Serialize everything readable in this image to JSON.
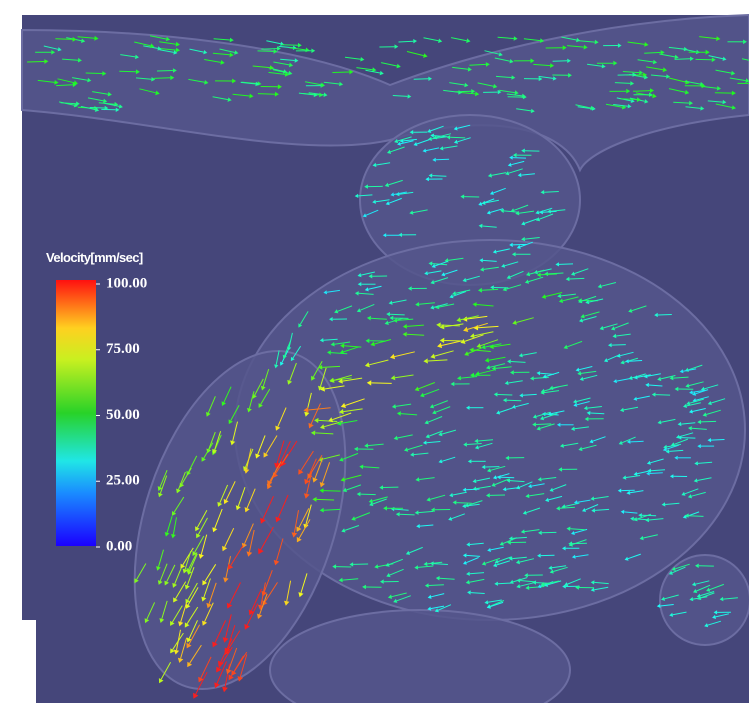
{
  "colorbar": {
    "title": "Velocity[mm/sec]",
    "lim": [
      0,
      100
    ],
    "ticks": [
      {
        "value": 100,
        "label": "100.00"
      },
      {
        "value": 75,
        "label": "75.00"
      },
      {
        "value": 50,
        "label": "50.00"
      },
      {
        "value": 25,
        "label": "25.00"
      },
      {
        "value": 0,
        "label": "0.00"
      }
    ]
  }
}
